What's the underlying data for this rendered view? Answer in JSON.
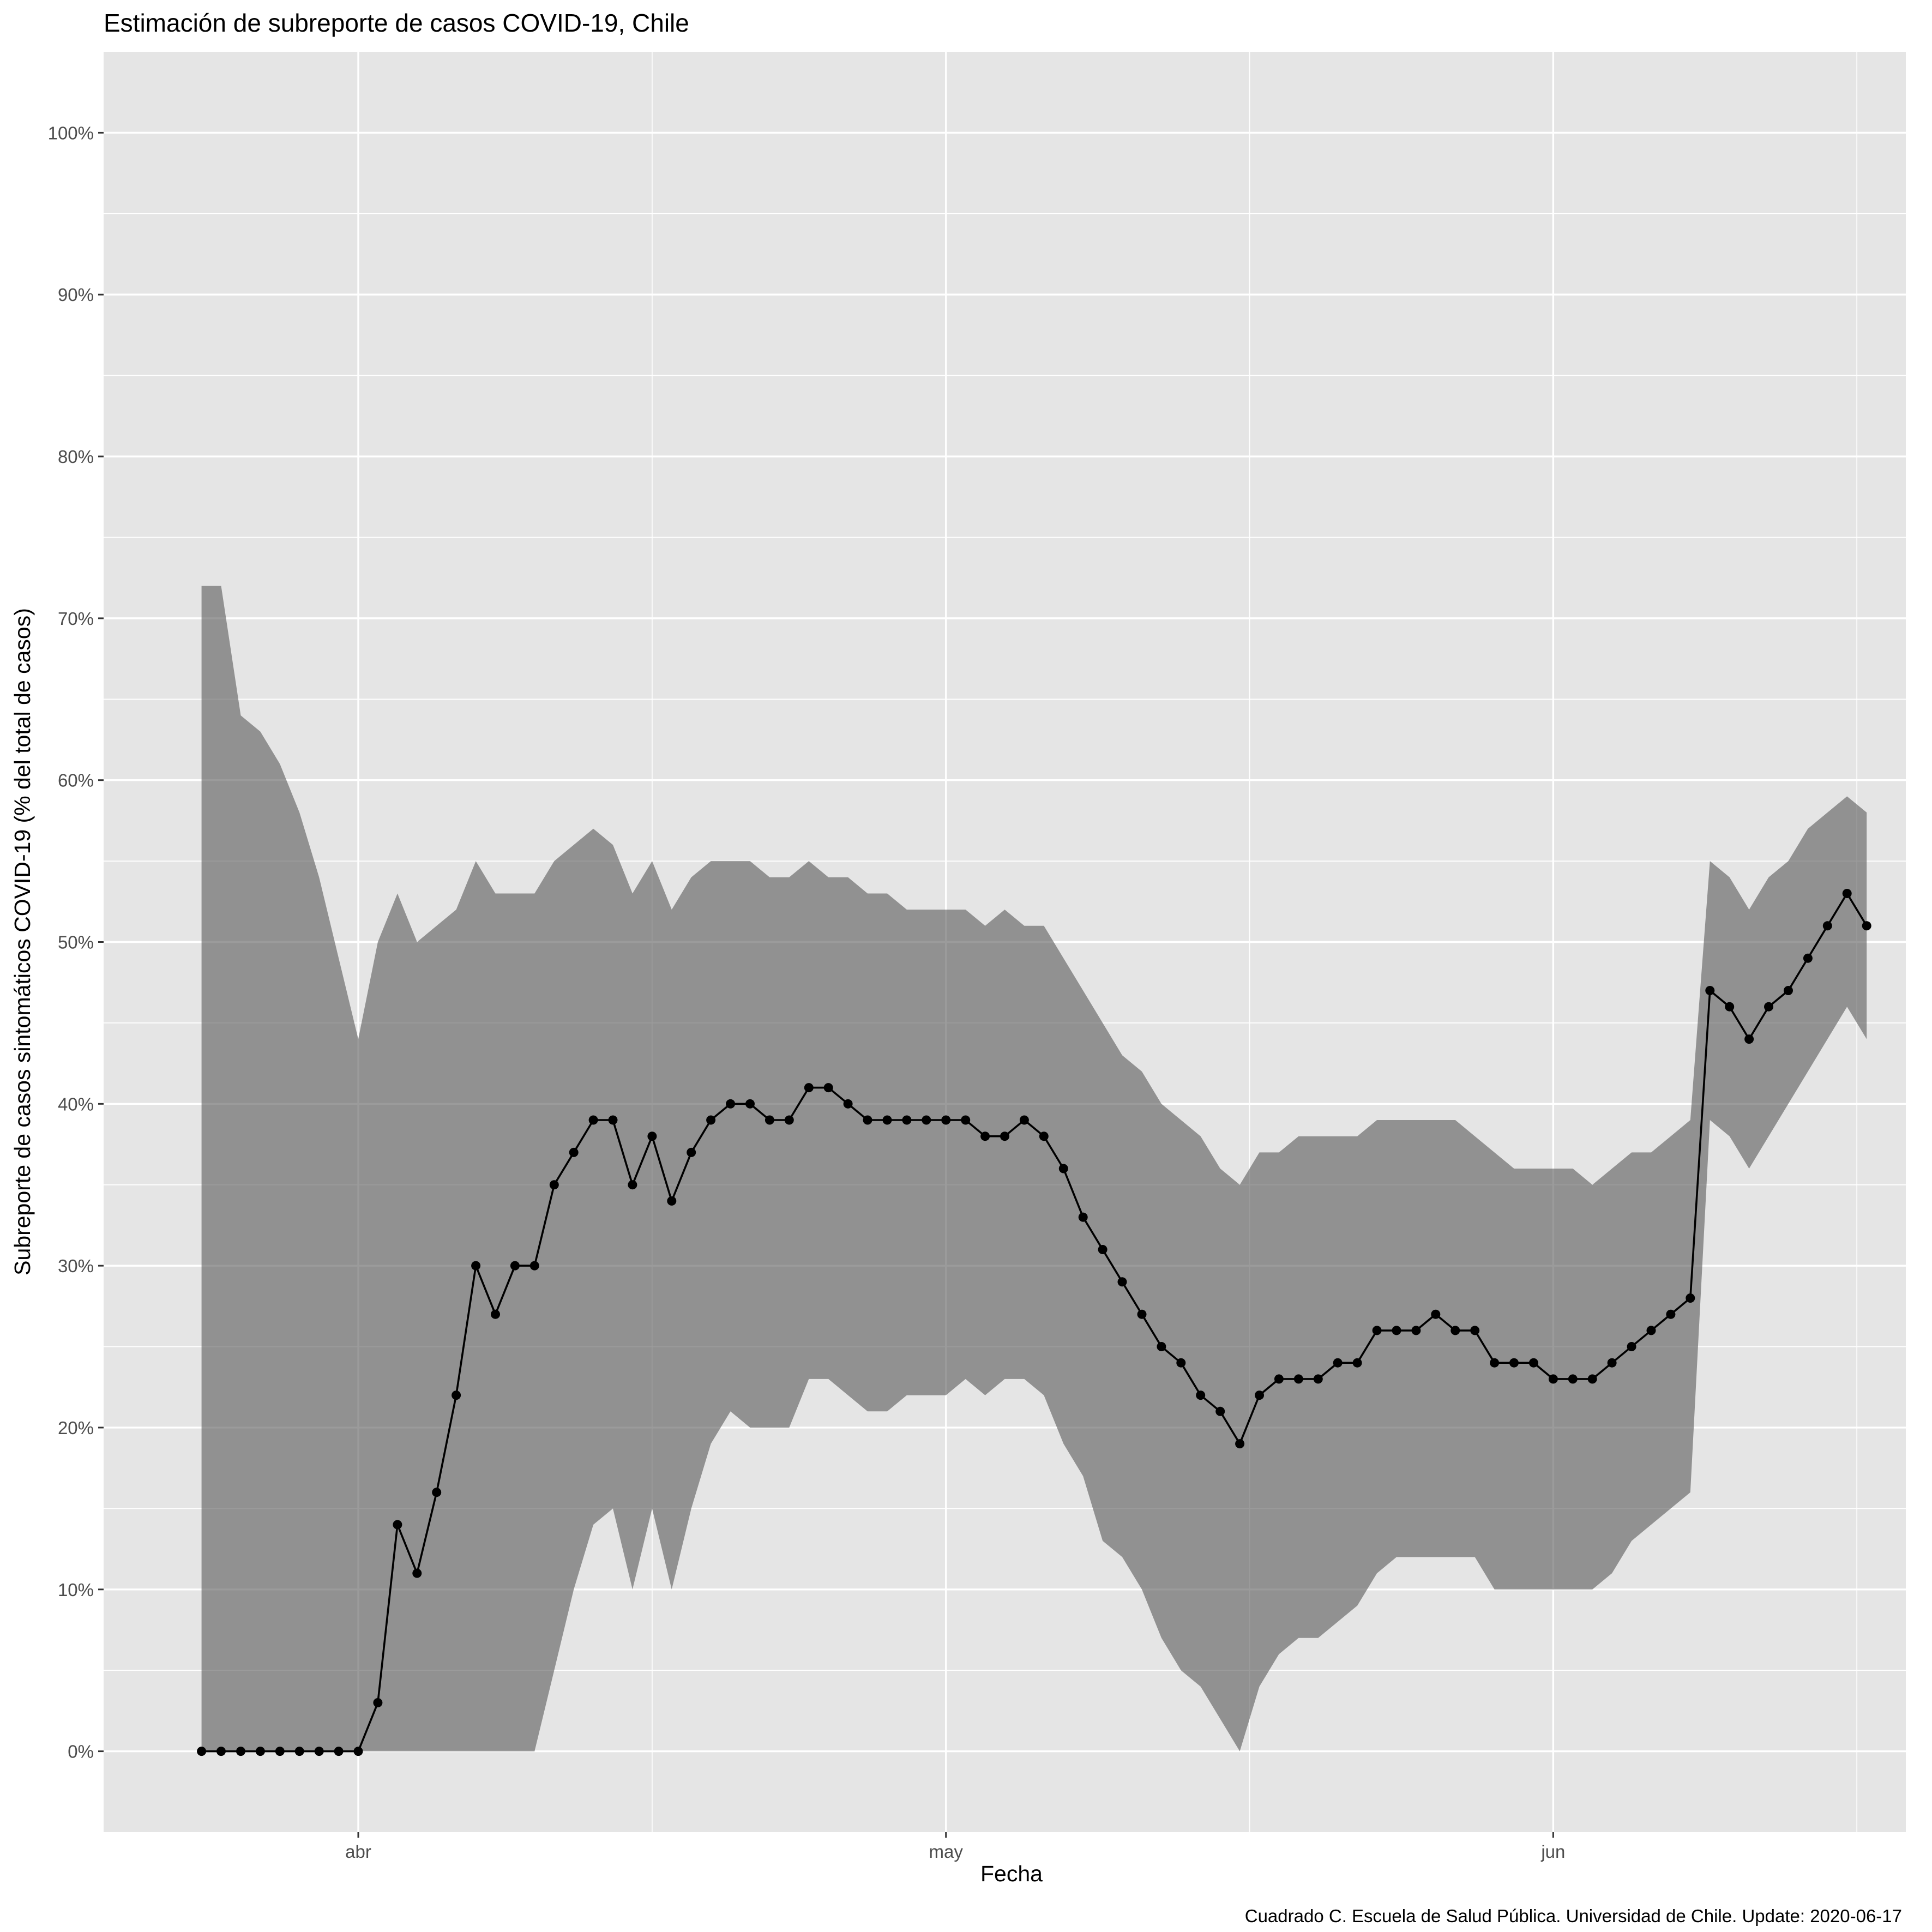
{
  "chart_data": {
    "type": "line",
    "title": "Estimación de subreporte de casos COVID-19, Chile",
    "xlabel": "Fecha",
    "ylabel": "Subreporte de casos sintomáticos COVID-19 (% del total de casos)",
    "caption": "Cuadrado C. Escuela de Salud Pública. Universidad de Chile. Update: 2020-06-17",
    "x_ticks": [
      {
        "date": "2020-04-01",
        "label": "abr"
      },
      {
        "date": "2020-05-01",
        "label": "may"
      },
      {
        "date": "2020-06-01",
        "label": "jun"
      }
    ],
    "y_ticks": [
      "0%",
      "10%",
      "20%",
      "30%",
      "40%",
      "50%",
      "60%",
      "70%",
      "80%",
      "90%",
      "100%"
    ],
    "ylim": [
      -5,
      105
    ],
    "xlim": [
      "2020-03-19",
      "2020-06-19"
    ],
    "grid": true,
    "first_date": "2020-03-24",
    "series": [
      {
        "kind": "line_points",
        "values": [
          0,
          0,
          0,
          0,
          0,
          0,
          0,
          0,
          0,
          3,
          14,
          11,
          16,
          22,
          30,
          27,
          30,
          30,
          35,
          37,
          39,
          39,
          35,
          38,
          34,
          37,
          39,
          40,
          40,
          39,
          39,
          41,
          41,
          40,
          39,
          39,
          39,
          39,
          39,
          39,
          38,
          38,
          39,
          38,
          36,
          33,
          31,
          29,
          27,
          25,
          24,
          22,
          21,
          19,
          22,
          23,
          23,
          23,
          24,
          24,
          26,
          26,
          26,
          27,
          26,
          26,
          24,
          24,
          24,
          23,
          23,
          23,
          24,
          25,
          26,
          27,
          28,
          47,
          46,
          44,
          46,
          47,
          49,
          51,
          53,
          51
        ]
      },
      {
        "kind": "ribbon_upper",
        "values": [
          72,
          72,
          64,
          63,
          61,
          58,
          54,
          49,
          44,
          50,
          53,
          50,
          51,
          52,
          55,
          53,
          53,
          53,
          55,
          56,
          57,
          56,
          53,
          55,
          52,
          54,
          55,
          55,
          55,
          54,
          54,
          55,
          54,
          54,
          53,
          53,
          52,
          52,
          52,
          52,
          51,
          52,
          51,
          51,
          49,
          47,
          45,
          43,
          42,
          40,
          39,
          38,
          36,
          35,
          37,
          37,
          38,
          38,
          38,
          38,
          39,
          39,
          39,
          39,
          39,
          38,
          37,
          36,
          36,
          36,
          36,
          35,
          36,
          37,
          37,
          38,
          39,
          55,
          54,
          52,
          54,
          55,
          57,
          58,
          59,
          58
        ]
      },
      {
        "kind": "ribbon_lower",
        "values": [
          0,
          0,
          0,
          0,
          0,
          0,
          0,
          0,
          0,
          0,
          0,
          0,
          0,
          0,
          0,
          0,
          0,
          0,
          5,
          10,
          14,
          15,
          10,
          15,
          10,
          15,
          19,
          21,
          20,
          20,
          20,
          23,
          23,
          22,
          21,
          21,
          22,
          22,
          22,
          23,
          22,
          23,
          23,
          22,
          19,
          17,
          13,
          12,
          10,
          7,
          5,
          4,
          2,
          0,
          4,
          6,
          7,
          7,
          8,
          9,
          11,
          12,
          12,
          12,
          12,
          12,
          10,
          10,
          10,
          10,
          10,
          10,
          11,
          13,
          14,
          15,
          16,
          39,
          38,
          36,
          38,
          40,
          42,
          44,
          46,
          44
        ]
      }
    ]
  }
}
